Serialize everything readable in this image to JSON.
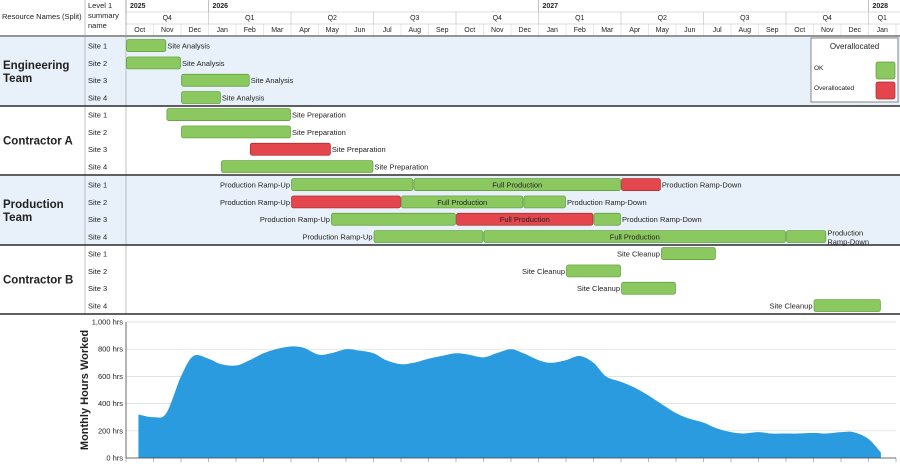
{
  "header": {
    "resource_col_label": "Resource Names (Split)",
    "summary_col_label_lines": [
      "Level 1",
      "summary",
      "name"
    ]
  },
  "timeline": {
    "start_year": 2025,
    "start_month": 10,
    "end_year": 2028,
    "end_month": 1,
    "years": [
      {
        "label": "2025",
        "year": 2025,
        "from": 10,
        "to": 12
      },
      {
        "label": "2026",
        "year": 2026,
        "from": 1,
        "to": 12
      },
      {
        "label": "2027",
        "year": 2027,
        "from": 1,
        "to": 12
      },
      {
        "label": "2028",
        "year": 2028,
        "from": 1,
        "to": 1
      }
    ],
    "quarters": [
      {
        "label": "Q4",
        "year": 2025,
        "from": 10,
        "to": 12
      },
      {
        "label": "Q1",
        "year": 2026,
        "from": 1,
        "to": 3
      },
      {
        "label": "Q2",
        "year": 2026,
        "from": 4,
        "to": 6
      },
      {
        "label": "Q3",
        "year": 2026,
        "from": 7,
        "to": 9
      },
      {
        "label": "Q4",
        "year": 2026,
        "from": 10,
        "to": 12
      },
      {
        "label": "Q1",
        "year": 2027,
        "from": 1,
        "to": 3
      },
      {
        "label": "Q2",
        "year": 2027,
        "from": 4,
        "to": 6
      },
      {
        "label": "Q3",
        "year": 2027,
        "from": 7,
        "to": 9
      },
      {
        "label": "Q4",
        "year": 2027,
        "from": 10,
        "to": 12
      },
      {
        "label": "Q1",
        "year": 2028,
        "from": 1,
        "to": 1
      }
    ],
    "months": [
      "Oct",
      "Nov",
      "Dec",
      "Jan",
      "Feb",
      "Mar",
      "Apr",
      "May",
      "Jun",
      "Jul",
      "Aug",
      "Sep",
      "Oct",
      "Nov",
      "Dec",
      "Jan",
      "Feb",
      "Mar",
      "Apr",
      "May",
      "Jun",
      "Jul",
      "Aug",
      "Sep",
      "Oct",
      "Nov",
      "Dec",
      "Jan"
    ]
  },
  "colors": {
    "ok": "#8bc960",
    "ok_border": "#5e9a3a",
    "over": "#e3474d",
    "over_border": "#a8282c",
    "shaded_group": "#e8f1f9",
    "area_fill": "#2b9be0",
    "grid": "#d9d9d9",
    "line": "#2b2b2b"
  },
  "groups": [
    {
      "name_lines": [
        "Engineering",
        "Team"
      ],
      "shaded": true,
      "rows": [
        {
          "label": "Site 1",
          "bars": [
            {
              "start": "2025-10-01",
              "end": "2025-11-15",
              "status": "ok",
              "text": "Site Analysis",
              "text_pos": "right"
            }
          ]
        },
        {
          "label": "Site 2",
          "bars": [
            {
              "start": "2025-10-01",
              "end": "2025-12-01",
              "status": "ok",
              "text": "Site Analysis",
              "text_pos": "right"
            }
          ]
        },
        {
          "label": "Site 3",
          "bars": [
            {
              "start": "2025-12-01",
              "end": "2026-02-15",
              "status": "ok",
              "text": "Site Analysis",
              "text_pos": "right"
            }
          ]
        },
        {
          "label": "Site 4",
          "bars": [
            {
              "start": "2025-12-01",
              "end": "2026-01-15",
              "status": "ok",
              "text": "Site Analysis",
              "text_pos": "right"
            }
          ]
        }
      ]
    },
    {
      "name_lines": [
        "Contractor A"
      ],
      "shaded": false,
      "rows": [
        {
          "label": "Site 1",
          "bars": [
            {
              "start": "2025-11-15",
              "end": "2026-04-01",
              "status": "ok",
              "text": "Site Preparation",
              "text_pos": "right"
            }
          ]
        },
        {
          "label": "Site 2",
          "bars": [
            {
              "start": "2025-12-01",
              "end": "2026-04-01",
              "status": "ok",
              "text": "Site Preparation",
              "text_pos": "right"
            }
          ]
        },
        {
          "label": "Site 3",
          "bars": [
            {
              "start": "2026-02-15",
              "end": "2026-05-15",
              "status": "over",
              "text": "Site Preparation",
              "text_pos": "right"
            }
          ]
        },
        {
          "label": "Site 4",
          "bars": [
            {
              "start": "2026-01-15",
              "end": "2026-07-01",
              "status": "ok",
              "text": "Site Preparation",
              "text_pos": "right"
            }
          ]
        }
      ]
    },
    {
      "name_lines": [
        "Production",
        "Team"
      ],
      "shaded": true,
      "rows": [
        {
          "label": "Site 1",
          "bars": [
            {
              "start": "2026-04-01",
              "end": "2026-08-15",
              "status": "ok",
              "text": "Production Ramp-Up",
              "text_pos": "left"
            },
            {
              "start": "2026-08-15",
              "end": "2027-04-01",
              "status": "ok",
              "text": "Full Production",
              "text_pos": "inside"
            },
            {
              "start": "2027-04-01",
              "end": "2027-05-15",
              "status": "over",
              "text": "Production Ramp-Down",
              "text_pos": "right"
            }
          ]
        },
        {
          "label": "Site 2",
          "bars": [
            {
              "start": "2026-04-01",
              "end": "2026-08-01",
              "status": "over",
              "text": "Production Ramp-Up",
              "text_pos": "left"
            },
            {
              "start": "2026-08-01",
              "end": "2026-12-15",
              "status": "ok",
              "text": "Full Production",
              "text_pos": "inside"
            },
            {
              "start": "2026-12-15",
              "end": "2027-02-01",
              "status": "ok",
              "text": "Production Ramp-Down",
              "text_pos": "right"
            }
          ]
        },
        {
          "label": "Site 3",
          "bars": [
            {
              "start": "2026-05-15",
              "end": "2026-10-01",
              "status": "ok",
              "text": "Production Ramp-Up",
              "text_pos": "left"
            },
            {
              "start": "2026-10-01",
              "end": "2027-03-01",
              "status": "over",
              "text": "Full Production",
              "text_pos": "inside"
            },
            {
              "start": "2027-03-01",
              "end": "2027-04-01",
              "status": "ok",
              "text": "Production Ramp-Down",
              "text_pos": "right"
            }
          ]
        },
        {
          "label": "Site 4",
          "bars": [
            {
              "start": "2026-07-01",
              "end": "2026-11-01",
              "status": "ok",
              "text": "Production Ramp-Up",
              "text_pos": "left"
            },
            {
              "start": "2026-11-01",
              "end": "2027-10-01",
              "status": "ok",
              "text": "Full Production",
              "text_pos": "inside"
            },
            {
              "start": "2027-10-01",
              "end": "2027-11-15",
              "status": "ok",
              "text": "Production Ramp-Down",
              "text_pos": "right2"
            }
          ]
        }
      ]
    },
    {
      "name_lines": [
        "Contractor B"
      ],
      "shaded": false,
      "rows": [
        {
          "label": "Site 1",
          "bars": [
            {
              "start": "2027-05-15",
              "end": "2027-07-15",
              "status": "ok",
              "text": "Site Cleanup",
              "text_pos": "left"
            }
          ]
        },
        {
          "label": "Site 2",
          "bars": [
            {
              "start": "2027-02-01",
              "end": "2027-04-01",
              "status": "ok",
              "text": "Site Cleanup",
              "text_pos": "left"
            }
          ]
        },
        {
          "label": "Site 3",
          "bars": [
            {
              "start": "2027-04-01",
              "end": "2027-06-01",
              "status": "ok",
              "text": "Site Cleanup",
              "text_pos": "left"
            }
          ]
        },
        {
          "label": "Site 4",
          "bars": [
            {
              "start": "2027-11-01",
              "end": "2028-01-15",
              "status": "ok",
              "text": "Site Cleanup",
              "text_pos": "left"
            }
          ]
        }
      ]
    }
  ],
  "legend": {
    "title": "Overallocated",
    "items": [
      {
        "label": "OK",
        "status": "ok"
      },
      {
        "label": "Overallocated",
        "status": "over"
      }
    ]
  },
  "chart_data": {
    "type": "area",
    "ylabel": "Monthly Hours Worked",
    "ylim": [
      0,
      1000
    ],
    "yticks": [
      {
        "value": 0,
        "label": "0 hrs"
      },
      {
        "value": 200,
        "label": "200 hrs"
      },
      {
        "value": 400,
        "label": "400 hrs"
      },
      {
        "value": 600,
        "label": "600 hrs"
      },
      {
        "value": 800,
        "label": "800 hrs"
      },
      {
        "value": 1000,
        "label": "1,000 hrs"
      }
    ],
    "grid": true,
    "series": [
      {
        "x": [
          "2025-10-15",
          "2025-11-01",
          "2025-11-15",
          "2025-12-01",
          "2025-12-15",
          "2026-01-01",
          "2026-01-15",
          "2026-02-01",
          "2026-02-15",
          "2026-03-01",
          "2026-03-15",
          "2026-04-01",
          "2026-04-15",
          "2026-05-01",
          "2026-05-15",
          "2026-06-01",
          "2026-06-15",
          "2026-07-01",
          "2026-07-15",
          "2026-08-01",
          "2026-08-15",
          "2026-09-01",
          "2026-09-15",
          "2026-10-01",
          "2026-10-15",
          "2026-11-01",
          "2026-11-15",
          "2026-12-01",
          "2026-12-15",
          "2027-01-01",
          "2027-01-15",
          "2027-02-01",
          "2027-02-15",
          "2027-03-01",
          "2027-03-15",
          "2027-04-01",
          "2027-04-15",
          "2027-05-01",
          "2027-05-15",
          "2027-06-01",
          "2027-06-15",
          "2027-07-01",
          "2027-07-15",
          "2027-08-01",
          "2027-08-15",
          "2027-09-01",
          "2027-09-15",
          "2027-10-01",
          "2027-10-15",
          "2027-11-01",
          "2027-11-15",
          "2027-12-01",
          "2027-12-15",
          "2028-01-01",
          "2028-01-15"
        ],
        "values": [
          320,
          300,
          330,
          600,
          750,
          730,
          690,
          680,
          720,
          770,
          800,
          820,
          810,
          760,
          770,
          800,
          790,
          770,
          720,
          690,
          700,
          730,
          750,
          770,
          760,
          740,
          770,
          800,
          770,
          720,
          700,
          720,
          750,
          700,
          600,
          560,
          520,
          460,
          400,
          330,
          290,
          260,
          220,
          190,
          180,
          190,
          180,
          180,
          180,
          185,
          180,
          190,
          190,
          140,
          40
        ]
      }
    ]
  }
}
